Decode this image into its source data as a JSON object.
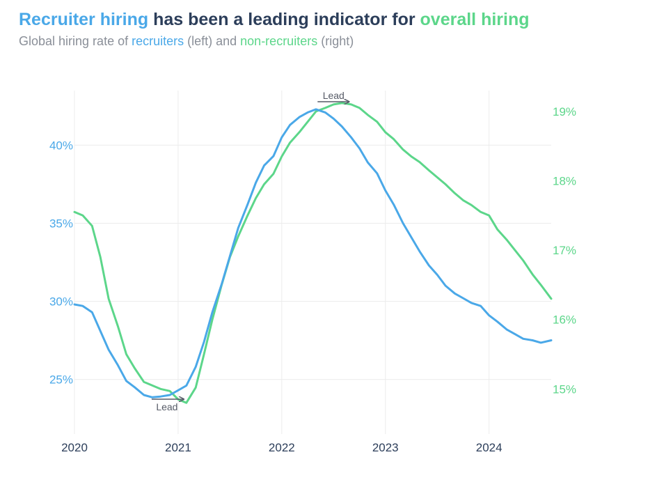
{
  "title": {
    "part1": "Recruiter hiring",
    "part2": " has been a leading indicator for ",
    "part3": "overall hiring"
  },
  "subtitle": {
    "part1": "Global hiring rate of ",
    "part2": "recruiters",
    "part3": " (left) and ",
    "part4": "non-recruiters",
    "part5": " (right)"
  },
  "colors": {
    "recruiters": "#4aa8e8",
    "non_recruiters": "#5cd68a",
    "title_dark": "#2c3e5a",
    "annotation": "#555a66"
  },
  "chart_data": {
    "type": "line",
    "x_ticks": [
      "2020",
      "2021",
      "2022",
      "2023",
      "2024"
    ],
    "x_range": [
      2020.0,
      2024.6
    ],
    "left_axis": {
      "ticks": [
        "25%",
        "30%",
        "35%",
        "40%"
      ],
      "tick_values": [
        25,
        30,
        35,
        40
      ],
      "range": [
        21.5,
        43.5
      ]
    },
    "right_axis": {
      "ticks": [
        "15%",
        "16%",
        "17%",
        "18%",
        "19%"
      ],
      "tick_values": [
        15,
        16,
        17,
        18,
        19
      ],
      "range": [
        14.35,
        19.3
      ]
    },
    "grid": true,
    "annotations": [
      {
        "text": "Lead",
        "x": 2021.0
      },
      {
        "text": "Lead",
        "x": 2022.5
      }
    ],
    "series": [
      {
        "name": "recruiters",
        "axis": "left",
        "x": [
          2020.0,
          2020.08,
          2020.17,
          2020.25,
          2020.33,
          2020.42,
          2020.5,
          2020.58,
          2020.67,
          2020.75,
          2020.83,
          2020.92,
          2021.0,
          2021.08,
          2021.17,
          2021.25,
          2021.33,
          2021.42,
          2021.5,
          2021.58,
          2021.67,
          2021.75,
          2021.83,
          2021.92,
          2022.0,
          2022.08,
          2022.17,
          2022.25,
          2022.33,
          2022.42,
          2022.5,
          2022.58,
          2022.67,
          2022.75,
          2022.83,
          2022.92,
          2023.0,
          2023.08,
          2023.17,
          2023.25,
          2023.33,
          2023.42,
          2023.5,
          2023.58,
          2023.67,
          2023.75,
          2023.83,
          2023.92,
          2024.0,
          2024.08,
          2024.17,
          2024.25,
          2024.33,
          2024.42,
          2024.5,
          2024.6
        ],
        "values": [
          29.8,
          29.7,
          29.3,
          28.1,
          26.9,
          25.9,
          24.9,
          24.5,
          24.0,
          23.85,
          23.9,
          24.0,
          24.3,
          24.6,
          25.8,
          27.4,
          29.3,
          31.1,
          32.9,
          34.7,
          36.2,
          37.6,
          38.7,
          39.3,
          40.5,
          41.3,
          41.8,
          42.1,
          42.3,
          42.1,
          41.7,
          41.2,
          40.5,
          39.8,
          38.9,
          38.2,
          37.1,
          36.2,
          35.0,
          34.1,
          33.2,
          32.3,
          31.7,
          31.0,
          30.5,
          30.2,
          29.9,
          29.7,
          29.1,
          28.7,
          28.2,
          27.9,
          27.6,
          27.5,
          27.35,
          27.5
        ]
      },
      {
        "name": "non-recruiters",
        "axis": "right",
        "x": [
          2020.0,
          2020.08,
          2020.17,
          2020.25,
          2020.33,
          2020.42,
          2020.5,
          2020.58,
          2020.67,
          2020.75,
          2020.83,
          2020.92,
          2021.0,
          2021.08,
          2021.17,
          2021.25,
          2021.33,
          2021.42,
          2021.5,
          2021.58,
          2021.67,
          2021.75,
          2021.83,
          2021.92,
          2022.0,
          2022.08,
          2022.17,
          2022.25,
          2022.33,
          2022.42,
          2022.5,
          2022.58,
          2022.67,
          2022.75,
          2022.83,
          2022.92,
          2023.0,
          2023.08,
          2023.17,
          2023.25,
          2023.33,
          2023.42,
          2023.5,
          2023.58,
          2023.67,
          2023.75,
          2023.83,
          2023.92,
          2024.0,
          2024.08,
          2024.17,
          2024.25,
          2024.33,
          2024.42,
          2024.5,
          2024.6
        ],
        "values": [
          17.55,
          17.5,
          17.35,
          16.9,
          16.3,
          15.9,
          15.5,
          15.3,
          15.1,
          15.05,
          15.0,
          14.97,
          14.85,
          14.8,
          15.02,
          15.5,
          16.0,
          16.5,
          16.9,
          17.2,
          17.5,
          17.75,
          17.95,
          18.1,
          18.35,
          18.55,
          18.7,
          18.85,
          19.0,
          19.05,
          19.1,
          19.12,
          19.1,
          19.05,
          18.95,
          18.85,
          18.7,
          18.6,
          18.45,
          18.35,
          18.27,
          18.15,
          18.05,
          17.95,
          17.82,
          17.72,
          17.65,
          17.55,
          17.5,
          17.3,
          17.15,
          17.0,
          16.85,
          16.65,
          16.5,
          16.3
        ]
      }
    ]
  }
}
